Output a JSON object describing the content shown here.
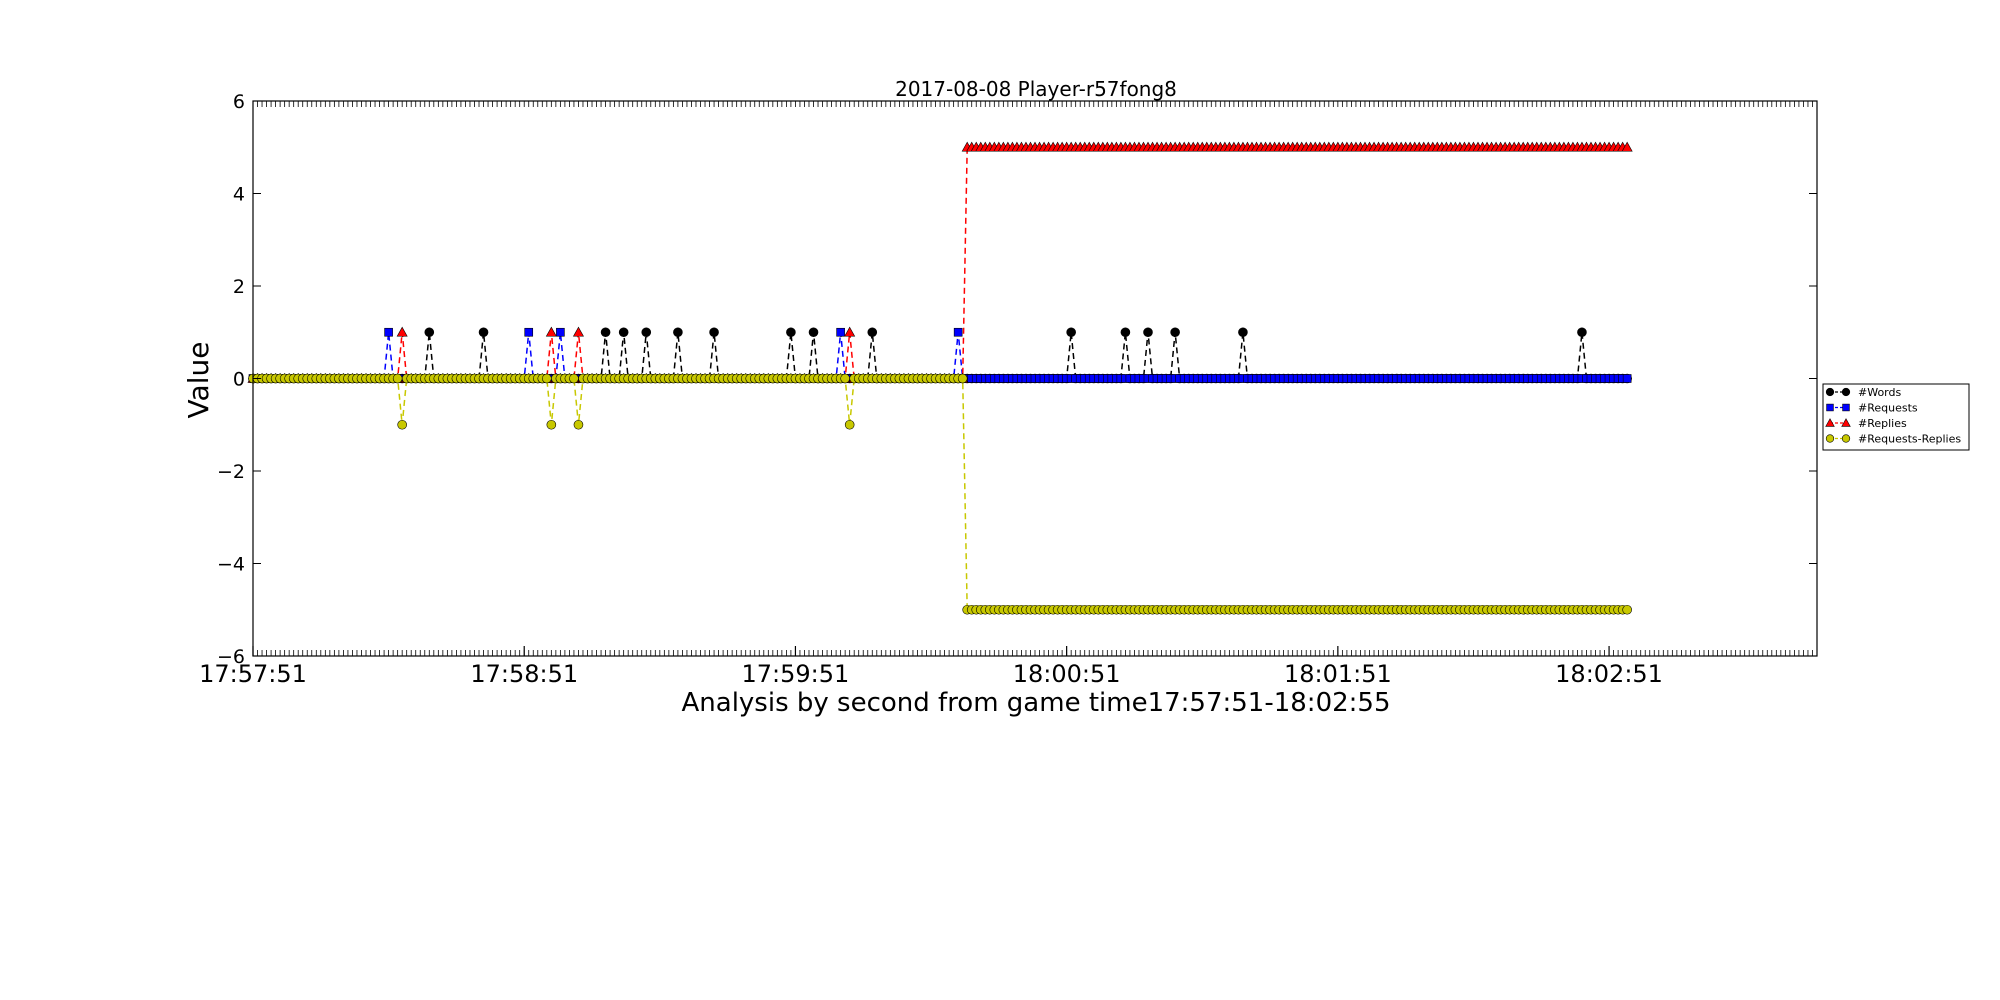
{
  "chart_data": {
    "type": "line",
    "title": "2017-08-08 Player-r57fong8",
    "xlabel": "Analysis by second from game time17:57:51-18:02:55",
    "ylabel": "Value",
    "x_start": "17:57:51",
    "x_end": "18:02:55",
    "xlim": [
      "17:57:51",
      "18:03:37"
    ],
    "ylim": [
      -6,
      6
    ],
    "y_ticks": [
      -6,
      -4,
      -2,
      0,
      2,
      4,
      6
    ],
    "x_ticks": [
      "17:57:51",
      "17:58:51",
      "17:59:51",
      "18:00:51",
      "18:01:51",
      "18:02:51"
    ],
    "grid": false,
    "legend_position": "outside right",
    "change_time": "18:00:28",
    "series": [
      {
        "name": "#Words",
        "color": "#000000",
        "marker": "circle",
        "line_style": "dashed",
        "baseline": 0,
        "spikes": [
          {
            "t": "17:58:30",
            "v": 1
          },
          {
            "t": "17:58:42",
            "v": 1
          },
          {
            "t": "17:59:09",
            "v": 1
          },
          {
            "t": "17:59:13",
            "v": 1
          },
          {
            "t": "17:59:18",
            "v": 1
          },
          {
            "t": "17:59:25",
            "v": 1
          },
          {
            "t": "17:59:33",
            "v": 1
          },
          {
            "t": "17:59:50",
            "v": 1
          },
          {
            "t": "17:59:55",
            "v": 1
          },
          {
            "t": "18:00:08",
            "v": 1
          },
          {
            "t": "18:00:52",
            "v": 1
          },
          {
            "t": "18:01:04",
            "v": 1
          },
          {
            "t": "18:01:09",
            "v": 1
          },
          {
            "t": "18:01:15",
            "v": 1
          },
          {
            "t": "18:01:30",
            "v": 1
          },
          {
            "t": "18:02:45",
            "v": 1
          }
        ]
      },
      {
        "name": "#Requests",
        "color": "#0000ff",
        "marker": "square",
        "line_style": "dashed",
        "baseline": 0,
        "spikes": [
          {
            "t": "17:58:21",
            "v": 1
          },
          {
            "t": "17:58:52",
            "v": 1
          },
          {
            "t": "17:58:59",
            "v": 1
          },
          {
            "t": "18:00:01",
            "v": 1
          },
          {
            "t": "18:00:27",
            "v": 1
          }
        ]
      },
      {
        "name": "#Replies",
        "color": "#ff0000",
        "marker": "triangle",
        "line_style": "dashed",
        "baseline": 0,
        "after_change": 5,
        "spikes": [
          {
            "t": "17:58:24",
            "v": 1
          },
          {
            "t": "17:58:57",
            "v": 1
          },
          {
            "t": "17:59:03",
            "v": 1
          },
          {
            "t": "18:00:03",
            "v": 1
          }
        ]
      },
      {
        "name": "#Requests-Replies",
        "color": "#c8c800",
        "marker": "circle",
        "line_style": "dashed",
        "baseline": 0,
        "after_change": -5,
        "spikes": [
          {
            "t": "17:58:24",
            "v": -1
          },
          {
            "t": "17:58:57",
            "v": -1
          },
          {
            "t": "17:59:03",
            "v": -1
          },
          {
            "t": "18:00:03",
            "v": -1
          }
        ]
      }
    ]
  }
}
